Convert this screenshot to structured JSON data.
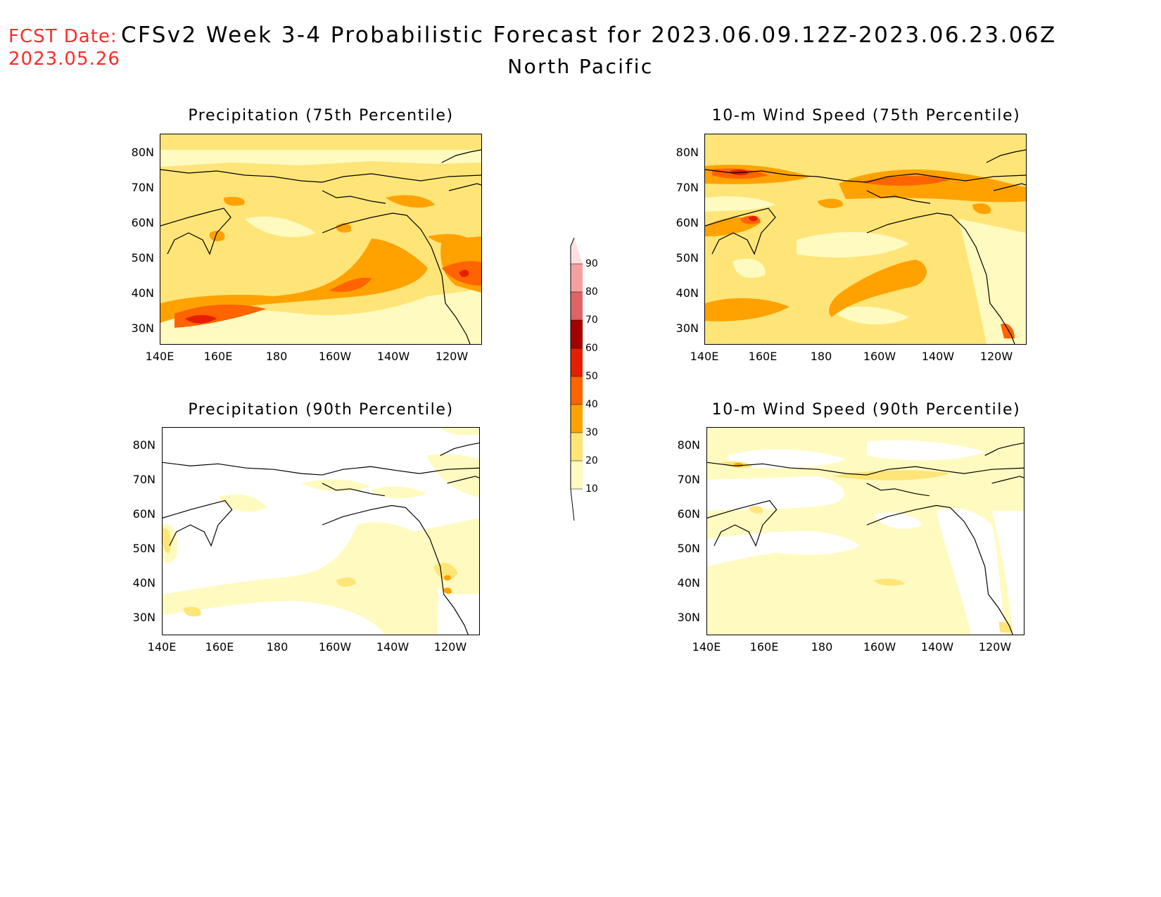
{
  "header": {
    "fcst_label": "FCST Date:",
    "fcst_date": "2023.05.26",
    "title": "CFSv2 Week 3-4 Probabilistic Forecast for 2023.06.09.12Z-2023.06.23.06Z",
    "subtitle": "North Pacific"
  },
  "colors": {
    "c10": "#fffac0",
    "c20": "#ffe578",
    "c30": "#ffa200",
    "c40": "#ff6400",
    "c50": "#e51e00",
    "c60": "#a50000",
    "c70": "#e06464",
    "c80": "#f5a0a0",
    "c90": "#ffe0e0",
    "coast": "#000000"
  },
  "axes": {
    "lat_ticks": [
      "80N",
      "70N",
      "60N",
      "50N",
      "40N",
      "30N"
    ],
    "lon_ticks": [
      "140E",
      "160E",
      "180",
      "160W",
      "140W",
      "120W"
    ]
  },
  "colorbar": {
    "levels": [
      "10",
      "20",
      "30",
      "40",
      "50",
      "60",
      "70",
      "80",
      "90"
    ]
  },
  "panels": [
    {
      "id": "precip75",
      "title": "Precipitation (75th Percentile)"
    },
    {
      "id": "wind75",
      "title": "10-m Wind Speed (75th Percentile)"
    },
    {
      "id": "precip90",
      "title": "Precipitation (90th Percentile)"
    },
    {
      "id": "wind90",
      "title": "10-m Wind Speed (90th Percentile)"
    }
  ]
}
